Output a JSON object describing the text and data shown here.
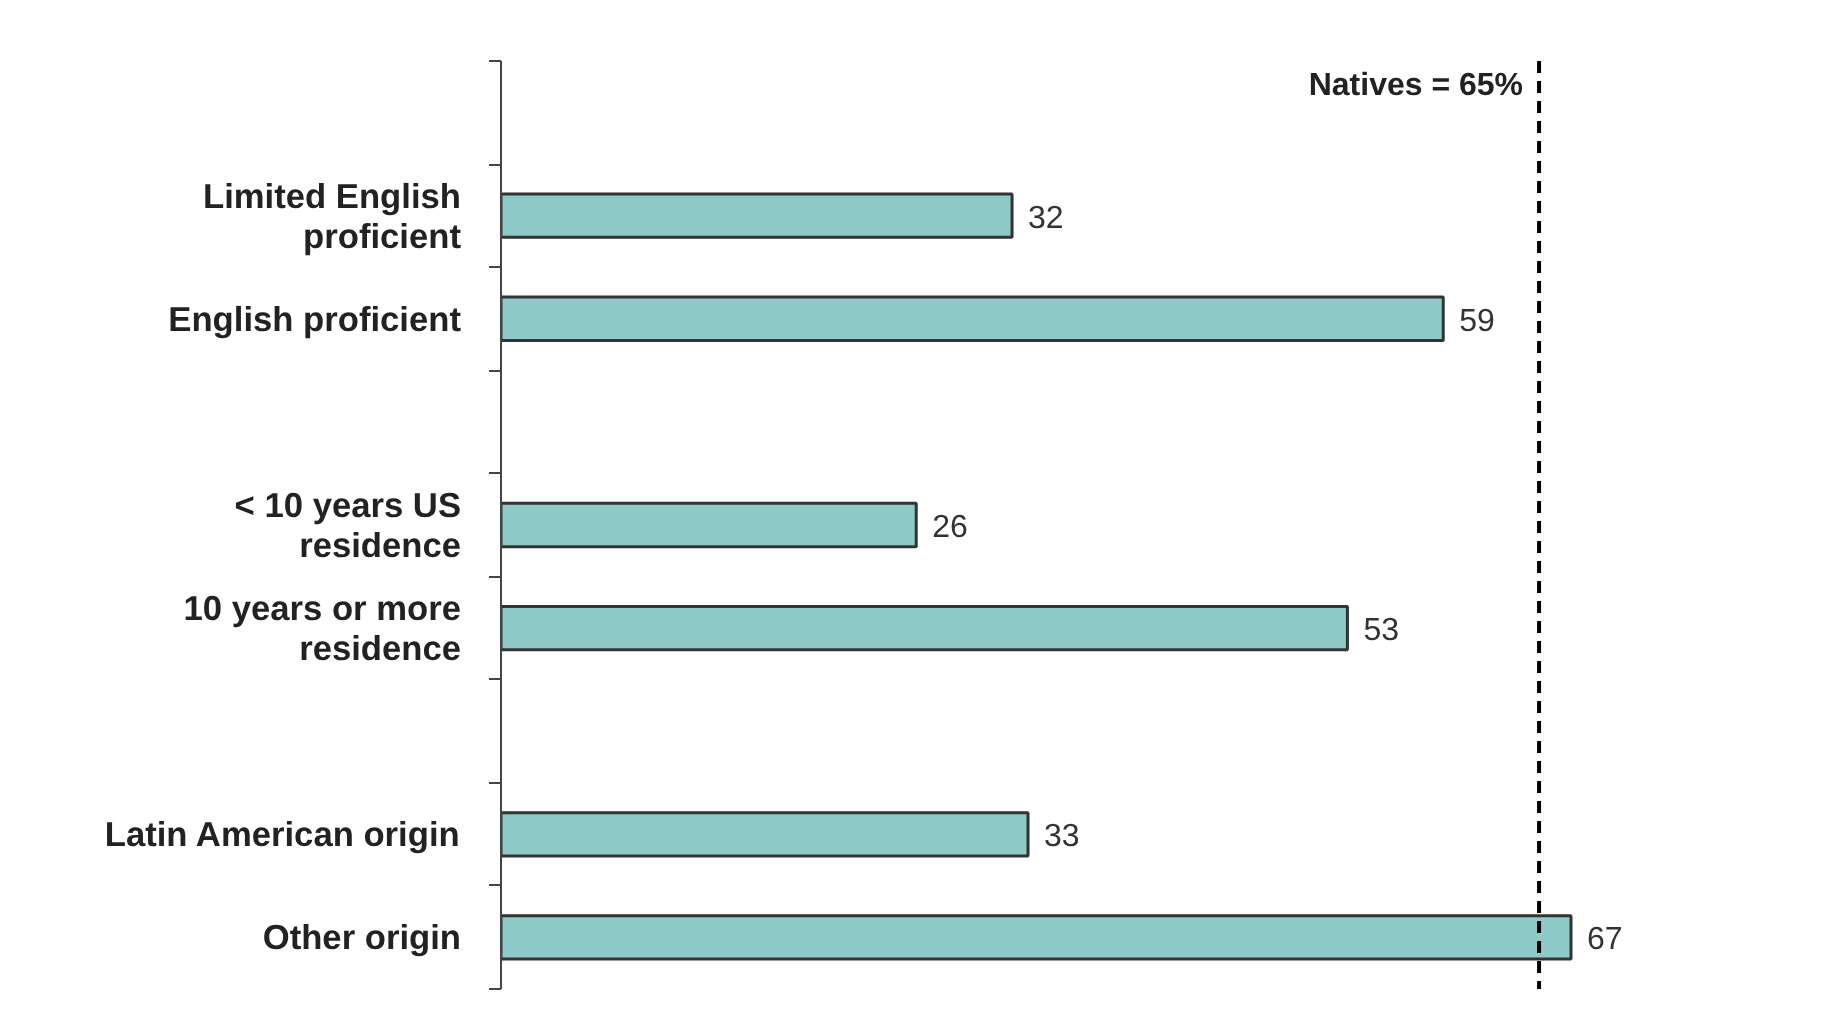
{
  "chart_data": {
    "type": "bar",
    "orientation": "horizontal",
    "categories": [
      null,
      "Limited English\nproficient",
      "English proficient",
      null,
      "< 10 years US\nresidence",
      "10 years or more\nresidence",
      null,
      "Latin American origin",
      "Other origin"
    ],
    "values": [
      null,
      32,
      59,
      null,
      26,
      53,
      null,
      33,
      67
    ],
    "color": "#8ecac8",
    "data_labels": true,
    "grid": false,
    "tick_labels": "y",
    "ref_lines": [
      {
        "axis": "x",
        "value": 65,
        "label": "Natives = 65%",
        "color": "#000000",
        "line_style": "dashed"
      }
    ]
  }
}
